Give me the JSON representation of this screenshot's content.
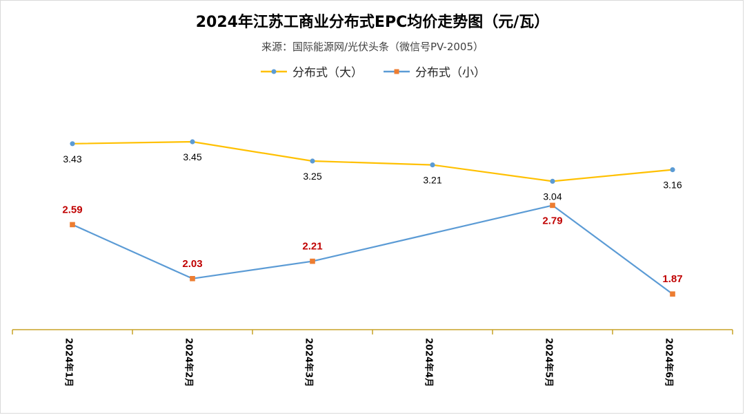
{
  "chart_data": {
    "type": "line",
    "title": "2024年江苏工商业分布式EPC均价走势图（元/瓦）",
    "subtitle": "来源：国际能源网/光伏头条（微信号PV-2005）",
    "categories": [
      "2024年1月",
      "2024年2月",
      "2024年3月",
      "2024年4月",
      "2024年5月",
      "2024年6月"
    ],
    "series": [
      {
        "name": "分布式（大）",
        "values": [
          3.43,
          3.45,
          3.25,
          3.21,
          3.04,
          3.16
        ],
        "labels": [
          "3.43",
          "3.45",
          "3.25",
          "3.21",
          "3.04",
          "3.16"
        ],
        "color": "#FFC000",
        "marker": "circle",
        "marker_color": "#5B9BD5",
        "label_color": "#000000"
      },
      {
        "name": "分布式（小）",
        "values": [
          2.59,
          2.03,
          2.21,
          null,
          2.79,
          1.87
        ],
        "line_values": [
          2.59,
          2.03,
          2.21,
          2.5,
          2.79,
          1.87
        ],
        "labels": [
          "2.59",
          "2.03",
          "2.21",
          null,
          "2.79",
          "1.87"
        ],
        "color": "#5B9BD5",
        "marker": "square",
        "marker_color": "#ED7D31",
        "label_color": "#C00000"
      }
    ],
    "ylim": [
      1.5,
      3.85
    ],
    "xlabel": "",
    "ylabel": "",
    "grid": false,
    "legend": "top-center",
    "axis_color": "#C9A227"
  }
}
